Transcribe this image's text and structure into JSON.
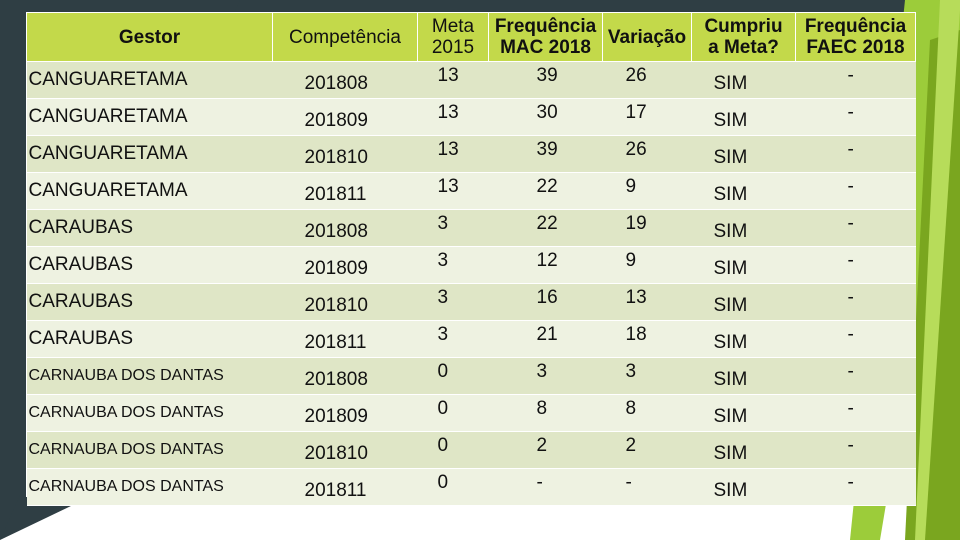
{
  "colors": {
    "header_fill": "#c3d94a",
    "row_odd": "#dfe6c6",
    "row_even": "#eef2e1",
    "slide_dark": "#2f3e44",
    "accent_green_light": "#9ccc3a",
    "accent_green_dark": "#7aa61f"
  },
  "table": {
    "headers": {
      "gestor": "Gestor",
      "competencia": "Competência",
      "meta_line1": "Meta",
      "meta_line2": "2015",
      "freq_mac_line1": "Frequência",
      "freq_mac_line2": "MAC 2018",
      "variacao": "Variação",
      "cumpriu_line1": "Cumpriu",
      "cumpriu_line2": "a Meta?",
      "freq_faec_line1": "Frequência",
      "freq_faec_line2": "FAEC 2018"
    },
    "rows": [
      {
        "gestor": "CANGUARETAMA",
        "competencia": "201808",
        "meta": "13",
        "freq_mac": "39",
        "variacao": "26",
        "cumpriu": "SIM",
        "freq_faec": "-"
      },
      {
        "gestor": "CANGUARETAMA",
        "competencia": "201809",
        "meta": "13",
        "freq_mac": "30",
        "variacao": "17",
        "cumpriu": "SIM",
        "freq_faec": "-"
      },
      {
        "gestor": "CANGUARETAMA",
        "competencia": "201810",
        "meta": "13",
        "freq_mac": "39",
        "variacao": "26",
        "cumpriu": "SIM",
        "freq_faec": "-"
      },
      {
        "gestor": "CANGUARETAMA",
        "competencia": "201811",
        "meta": "13",
        "freq_mac": "22",
        "variacao": "9",
        "cumpriu": "SIM",
        "freq_faec": "-"
      },
      {
        "gestor": "CARAUBAS",
        "competencia": "201808",
        "meta": "3",
        "freq_mac": "22",
        "variacao": "19",
        "cumpriu": "SIM",
        "freq_faec": "-"
      },
      {
        "gestor": "CARAUBAS",
        "competencia": "201809",
        "meta": "3",
        "freq_mac": "12",
        "variacao": "9",
        "cumpriu": "SIM",
        "freq_faec": "-"
      },
      {
        "gestor": "CARAUBAS",
        "competencia": "201810",
        "meta": "3",
        "freq_mac": "16",
        "variacao": "13",
        "cumpriu": "SIM",
        "freq_faec": "-"
      },
      {
        "gestor": "CARAUBAS",
        "competencia": "201811",
        "meta": "3",
        "freq_mac": "21",
        "variacao": "18",
        "cumpriu": "SIM",
        "freq_faec": "-"
      },
      {
        "gestor": "CARNAUBA DOS DANTAS",
        "competencia": "201808",
        "meta": "0",
        "freq_mac": "3",
        "variacao": "3",
        "cumpriu": "SIM",
        "freq_faec": "-"
      },
      {
        "gestor": "CARNAUBA DOS DANTAS",
        "competencia": "201809",
        "meta": "0",
        "freq_mac": "8",
        "variacao": "8",
        "cumpriu": "SIM",
        "freq_faec": "-"
      },
      {
        "gestor": "CARNAUBA DOS DANTAS",
        "competencia": "201810",
        "meta": "0",
        "freq_mac": "2",
        "variacao": "2",
        "cumpriu": "SIM",
        "freq_faec": "-"
      },
      {
        "gestor": "CARNAUBA DOS DANTAS",
        "competencia": "201811",
        "meta": "0",
        "freq_mac": "-",
        "variacao": "-",
        "cumpriu": "SIM",
        "freq_faec": "-"
      }
    ]
  }
}
